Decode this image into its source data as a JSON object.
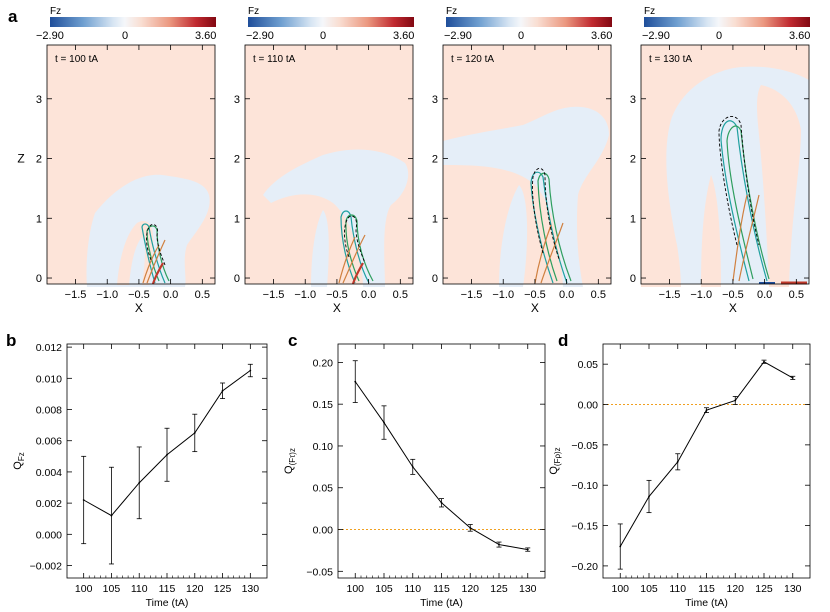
{
  "panel_letters": [
    "a",
    "b",
    "c",
    "d"
  ],
  "colorbar": {
    "label": "Fz",
    "min_label": "−2.90",
    "mid_label": "0",
    "max_label": "3.60"
  },
  "sim_axes": {
    "xlabel": "X",
    "ylabel": "Z",
    "xticks": [
      -1.5,
      -1.0,
      -0.5,
      0.0,
      0.5
    ],
    "xtick_labels": [
      "−1.5",
      "−1.0",
      "−0.5",
      "0.0",
      "0.5"
    ],
    "yticks": [
      0,
      1,
      2,
      3
    ],
    "ytick_labels": [
      "0",
      "1",
      "2",
      "3"
    ],
    "xlim": [
      -1.95,
      0.7
    ],
    "ylim": [
      -0.1,
      3.9
    ]
  },
  "sim_panels": [
    {
      "time_label": "t = 100 tA"
    },
    {
      "time_label": "t = 110 tA"
    },
    {
      "time_label": "t = 120 tA"
    },
    {
      "time_label": "t = 130 tA"
    }
  ],
  "chart_data": [
    {
      "type": "line",
      "panel": "b",
      "xlabel": "Time (tA)",
      "ylabel": "Q",
      "ylabel_sub": "Fz",
      "x": [
        100,
        105,
        110,
        115,
        120,
        125,
        130
      ],
      "values": [
        0.0022,
        0.0012,
        0.0033,
        0.0051,
        0.0065,
        0.0092,
        0.0105
      ],
      "errors": [
        0.0028,
        0.0031,
        0.0023,
        0.0017,
        0.0012,
        0.0005,
        0.0004
      ],
      "xlim": [
        97,
        133
      ],
      "ylim": [
        -0.0028,
        0.0122
      ],
      "yticks": [
        -0.002,
        0.0,
        0.002,
        0.004,
        0.006,
        0.008,
        0.01,
        0.012
      ],
      "ytick_labels": [
        "−0.002",
        "0.000",
        "0.002",
        "0.004",
        "0.006",
        "0.008",
        "0.010",
        "0.012"
      ],
      "xticks": [
        100,
        105,
        110,
        115,
        120,
        125,
        130
      ],
      "xtick_labels": [
        "100",
        "105",
        "110",
        "115",
        "120",
        "125",
        "130"
      ],
      "zero_line": false
    },
    {
      "type": "line",
      "panel": "c",
      "xlabel": "Time (tA)",
      "ylabel": "Q",
      "ylabel_sub": "(Fτ)z",
      "x": [
        100,
        105,
        110,
        115,
        120,
        125,
        130
      ],
      "values": [
        0.177,
        0.128,
        0.075,
        0.032,
        0.002,
        -0.018,
        -0.024
      ],
      "errors": [
        0.025,
        0.02,
        0.009,
        0.005,
        0.004,
        0.003,
        0.002
      ],
      "xlim": [
        97,
        133
      ],
      "ylim": [
        -0.058,
        0.222
      ],
      "yticks": [
        -0.05,
        0.0,
        0.05,
        0.1,
        0.15,
        0.2
      ],
      "ytick_labels": [
        "−0.05",
        "0.00",
        "0.05",
        "0.10",
        "0.15",
        "0.20"
      ],
      "xticks": [
        100,
        105,
        110,
        115,
        120,
        125,
        130
      ],
      "xtick_labels": [
        "100",
        "105",
        "110",
        "115",
        "120",
        "125",
        "130"
      ],
      "zero_line": true
    },
    {
      "type": "line",
      "panel": "d",
      "xlabel": "Time (tA)",
      "ylabel": "Q",
      "ylabel_sub": "(Fρ)z",
      "x": [
        100,
        105,
        110,
        115,
        120,
        125,
        130
      ],
      "values": [
        -0.176,
        -0.114,
        -0.071,
        -0.007,
        0.005,
        0.053,
        0.033
      ],
      "errors": [
        0.028,
        0.02,
        0.01,
        0.003,
        0.005,
        0.002,
        0.002
      ],
      "xlim": [
        97,
        133
      ],
      "ylim": [
        -0.215,
        0.075
      ],
      "yticks": [
        -0.2,
        -0.15,
        -0.1,
        -0.05,
        0.0,
        0.05
      ],
      "ytick_labels": [
        "−0.20",
        "−0.15",
        "−0.10",
        "−0.05",
        "0.00",
        "0.05"
      ],
      "xticks": [
        100,
        105,
        110,
        115,
        120,
        125,
        130
      ],
      "xtick_labels": [
        "100",
        "105",
        "110",
        "115",
        "120",
        "125",
        "130"
      ],
      "zero_line": true
    }
  ],
  "colors": {
    "background_positive": "#fde4d9",
    "background_negative": "#e5eef8",
    "line": "#000000",
    "zero_line": "#f0a020",
    "contour_green": "#2e9e5e",
    "contour_teal": "#1fa0a0",
    "contour_orange": "#d08040",
    "strong_red": "#c0392b",
    "colorbar_stops": [
      "#1f4e9a",
      "#6f9fd0",
      "#c9dcef",
      "#f4f7fb",
      "#f7d3c3",
      "#e58a72",
      "#b2202a",
      "#8b0a14"
    ]
  }
}
